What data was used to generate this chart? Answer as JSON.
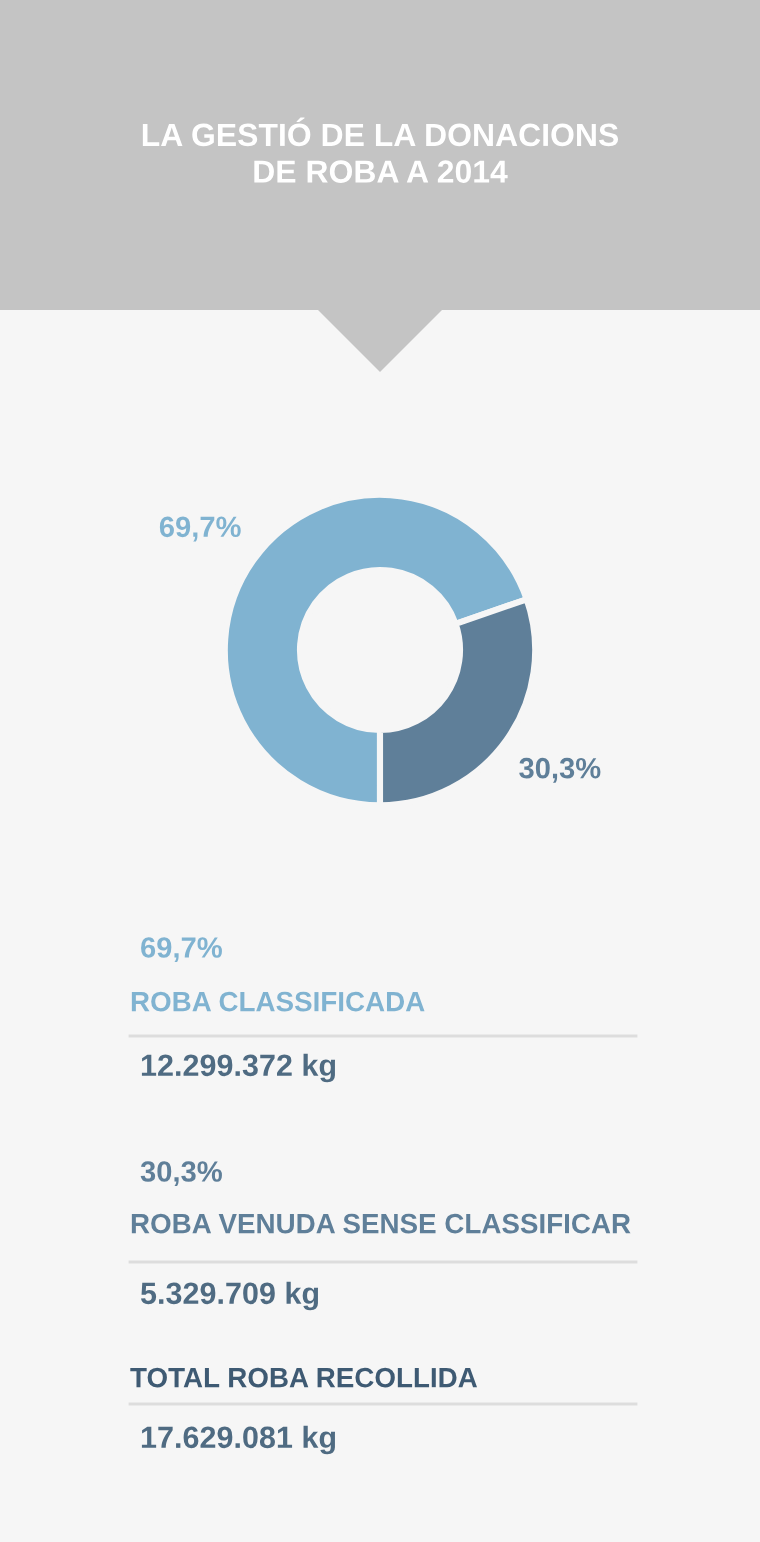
{
  "chart_data": [
    {
      "type": "donut",
      "title": "LA GESTIÓ DE LA DONACIONS\nDE ROBA A 2014",
      "categories": [
        null,
        null
      ],
      "values": [
        69.7,
        30.3
      ],
      "colors": [
        "#80b3d1",
        "#5f7f99"
      ],
      "value_labels": [
        "69,7%",
        "30,3%"
      ]
    },
    {
      "type": "other",
      "annotations": [
        "69,7%",
        "ROBA CLASSIFICADA",
        "12.299.372 kg",
        "30,3%",
        "ROBA VENUDA SENSE CLASSIFICAR",
        "5.329.709 kg",
        "TOTAL ROBA RECOLLIDA",
        "17.629.081 kg"
      ]
    }
  ]
}
